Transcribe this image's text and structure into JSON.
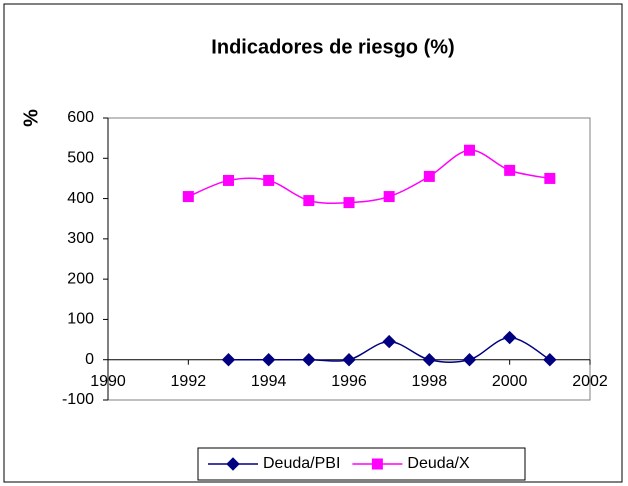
{
  "chart_data": {
    "type": "line",
    "title": "Indicadores de riesgo (%)",
    "y_label": "%",
    "x": [
      1992,
      1993,
      1994,
      1995,
      1996,
      1997,
      1998,
      1999,
      2000,
      2001
    ],
    "series": [
      {
        "name": "Deuda/PBI",
        "color": "#000080",
        "marker": "diamond",
        "values": [
          null,
          0,
          0,
          0,
          0,
          45,
          0,
          0,
          55,
          0
        ]
      },
      {
        "name": "Deuda/X",
        "color": "#ff00ff",
        "marker": "square",
        "values": [
          405,
          445,
          445,
          395,
          390,
          405,
          455,
          520,
          470,
          450
        ]
      }
    ],
    "xlim": [
      1990,
      2002
    ],
    "xticks": [
      1990,
      1992,
      1994,
      1996,
      1998,
      2000,
      2002
    ],
    "ylim": [
      -100,
      600
    ],
    "yticks": [
      -100,
      0,
      100,
      200,
      300,
      400,
      500,
      600
    ],
    "smooth": true,
    "legend": "bottom"
  }
}
